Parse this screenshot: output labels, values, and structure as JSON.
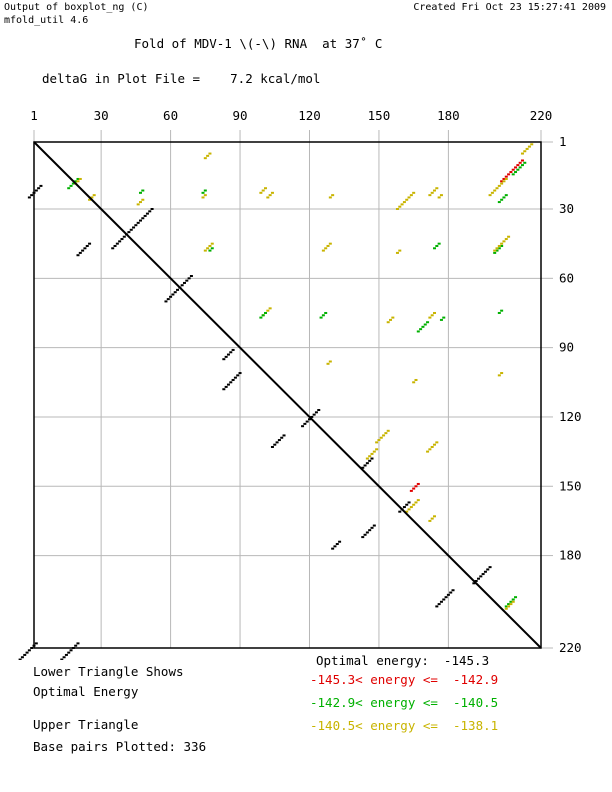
{
  "header": {
    "program": "Output of boxplot_ng (C)",
    "version": "mfold_util 4.6",
    "created": "Created Fri Oct 23 15:27:41 2009"
  },
  "titles": {
    "fold": "Fold of MDV-1 \\(-\\) RNA  at 37˚ C",
    "deltag": "deltaG in Plot File =    7.2 kcal/mol"
  },
  "legend": {
    "lower_line1": "Lower Triangle Shows",
    "lower_line2": "Optimal Energy",
    "upper": "Upper Triangle",
    "base_pairs": "Base pairs Plotted: 336",
    "optimal": "Optimal energy:  -145.3",
    "levels": [
      {
        "text": "-145.3< energy <=  -142.9",
        "color": "#e00000"
      },
      {
        "text": "-142.9< energy <=  -140.5",
        "color": "#00b000"
      },
      {
        "text": "-140.5< energy <=  -138.1",
        "color": "#c8b400"
      }
    ]
  },
  "chart_data": {
    "type": "scatter",
    "x_ticks": [
      "1",
      "30",
      "60",
      "90",
      "120",
      "150",
      "180",
      "220"
    ],
    "y_ticks": [
      "1",
      "30",
      "60",
      "90",
      "120",
      "150",
      "180",
      "220"
    ],
    "xlim": [
      1,
      220
    ],
    "ylim": [
      1,
      220
    ],
    "grid": true,
    "colors": {
      "optimal": "#000000",
      "red": "#e00000",
      "green": "#00b000",
      "yellow": "#c8b400"
    },
    "lower_optimal_helices": [
      {
        "i": 20,
        "j": 4,
        "len": 6
      },
      {
        "i": 30,
        "j": 52,
        "len": 18
      },
      {
        "i": 45,
        "j": 25,
        "len": 6
      },
      {
        "i": 59,
        "j": 69,
        "len": 12
      },
      {
        "i": 91,
        "j": 87,
        "len": 5
      },
      {
        "i": 101,
        "j": 90,
        "len": 8
      },
      {
        "i": 117,
        "j": 124,
        "len": 8
      },
      {
        "i": 128,
        "j": 109,
        "len": 6
      },
      {
        "i": 138,
        "j": 147,
        "len": 5
      },
      {
        "i": 157,
        "j": 163,
        "len": 5
      },
      {
        "i": 167,
        "j": 148,
        "len": 6
      },
      {
        "i": 174,
        "j": 133,
        "len": 4
      },
      {
        "i": 185,
        "j": 198,
        "len": 8
      },
      {
        "i": 195,
        "j": 182,
        "len": 8
      },
      {
        "i": 218,
        "j": 20,
        "len": 12
      },
      {
        "i": 218,
        "j": 2,
        "len": 12
      }
    ],
    "upper_suboptimal_helices": [
      {
        "i": 17,
        "j": 20,
        "len": 5,
        "level": "green"
      },
      {
        "i": 17,
        "j": 21,
        "len": 3,
        "level": "yellow"
      },
      {
        "i": 24,
        "j": 27,
        "len": 3,
        "level": "yellow"
      },
      {
        "i": 6,
        "j": 77,
        "len": 3,
        "level": "yellow"
      },
      {
        "i": 22,
        "j": 48,
        "len": 2,
        "level": "green"
      },
      {
        "i": 26,
        "j": 48,
        "len": 3,
        "level": "yellow"
      },
      {
        "i": 22,
        "j": 75,
        "len": 2,
        "level": "green"
      },
      {
        "i": 24,
        "j": 75,
        "len": 2,
        "level": "yellow"
      },
      {
        "i": 21,
        "j": 101,
        "len": 3,
        "level": "yellow"
      },
      {
        "i": 23,
        "j": 104,
        "len": 3,
        "level": "yellow"
      },
      {
        "i": 24,
        "j": 130,
        "len": 2,
        "level": "yellow"
      },
      {
        "i": 23,
        "j": 165,
        "len": 8,
        "level": "yellow"
      },
      {
        "i": 21,
        "j": 175,
        "len": 4,
        "level": "yellow"
      },
      {
        "i": 24,
        "j": 177,
        "len": 2,
        "level": "yellow"
      },
      {
        "i": 9,
        "j": 212,
        "len": 10,
        "level": "red"
      },
      {
        "i": 10,
        "j": 213,
        "len": 6,
        "level": "green"
      },
      {
        "i": 2,
        "j": 216,
        "len": 5,
        "level": "yellow"
      },
      {
        "i": 24,
        "j": 205,
        "len": 4,
        "level": "green"
      },
      {
        "i": 17,
        "j": 205,
        "len": 8,
        "level": "yellow"
      },
      {
        "i": 45,
        "j": 78,
        "len": 4,
        "level": "yellow"
      },
      {
        "i": 47,
        "j": 78,
        "len": 2,
        "level": "green"
      },
      {
        "i": 45,
        "j": 129,
        "len": 4,
        "level": "yellow"
      },
      {
        "i": 48,
        "j": 159,
        "len": 2,
        "level": "yellow"
      },
      {
        "i": 45,
        "j": 176,
        "len": 3,
        "level": "green"
      },
      {
        "i": 46,
        "j": 203,
        "len": 4,
        "level": "green"
      },
      {
        "i": 42,
        "j": 206,
        "len": 7,
        "level": "yellow"
      },
      {
        "i": 73,
        "j": 103,
        "len": 4,
        "level": "yellow"
      },
      {
        "i": 75,
        "j": 101,
        "len": 3,
        "level": "green"
      },
      {
        "i": 75,
        "j": 127,
        "len": 3,
        "level": "green"
      },
      {
        "i": 77,
        "j": 156,
        "len": 3,
        "level": "yellow"
      },
      {
        "i": 79,
        "j": 171,
        "len": 5,
        "level": "green"
      },
      {
        "i": 75,
        "j": 174,
        "len": 3,
        "level": "yellow"
      },
      {
        "i": 77,
        "j": 178,
        "len": 2,
        "level": "green"
      },
      {
        "i": 74,
        "j": 203,
        "len": 2,
        "level": "green"
      },
      {
        "i": 96,
        "j": 129,
        "len": 2,
        "level": "yellow"
      },
      {
        "i": 104,
        "j": 166,
        "len": 2,
        "level": "yellow"
      },
      {
        "i": 101,
        "j": 203,
        "len": 2,
        "level": "yellow"
      },
      {
        "i": 126,
        "j": 154,
        "len": 6,
        "level": "yellow"
      },
      {
        "i": 131,
        "j": 175,
        "len": 5,
        "level": "yellow"
      },
      {
        "i": 134,
        "j": 149,
        "len": 5,
        "level": "yellow"
      },
      {
        "i": 149,
        "j": 167,
        "len": 4,
        "level": "red"
      },
      {
        "i": 156,
        "j": 167,
        "len": 6,
        "level": "yellow"
      },
      {
        "i": 163,
        "j": 174,
        "len": 3,
        "level": "yellow"
      },
      {
        "i": 198,
        "j": 209,
        "len": 5,
        "level": "green"
      },
      {
        "i": 200,
        "j": 208,
        "len": 4,
        "level": "yellow"
      }
    ]
  }
}
